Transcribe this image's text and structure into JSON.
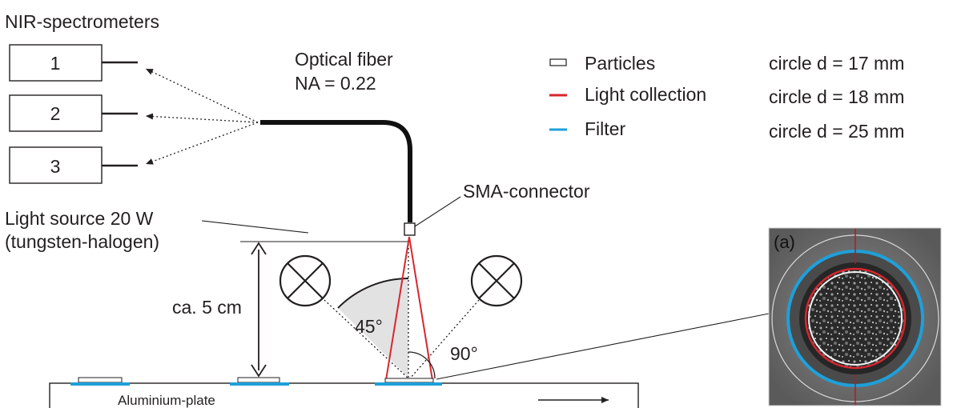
{
  "title": "NIR-spectrometers",
  "spectrometers": [
    "1",
    "2",
    "3"
  ],
  "fiber": {
    "name": "Optical fiber",
    "na": "NA = 0.22"
  },
  "connector": "SMA-connector",
  "light_source": {
    "line1": "Light source 20 W",
    "line2": "(tungsten-halogen)"
  },
  "distance": "ca. 5 cm",
  "angle_45": "45°",
  "angle_90": "90°",
  "plate": "Aluminium-plate",
  "legend": [
    {
      "label": "Particles",
      "value": "circle d = 17 mm",
      "swatch": "#ffffff"
    },
    {
      "label": "Light collection",
      "value": "circle d = 18 mm",
      "swatch": "#d7262e"
    },
    {
      "label": "Filter",
      "value": "circle d = 25 mm",
      "swatch": "#1ea0da"
    }
  ],
  "photo_label": "(a)",
  "colors": {
    "red": "#d7262e",
    "blue": "#1ea0da",
    "ink": "#231f20"
  }
}
